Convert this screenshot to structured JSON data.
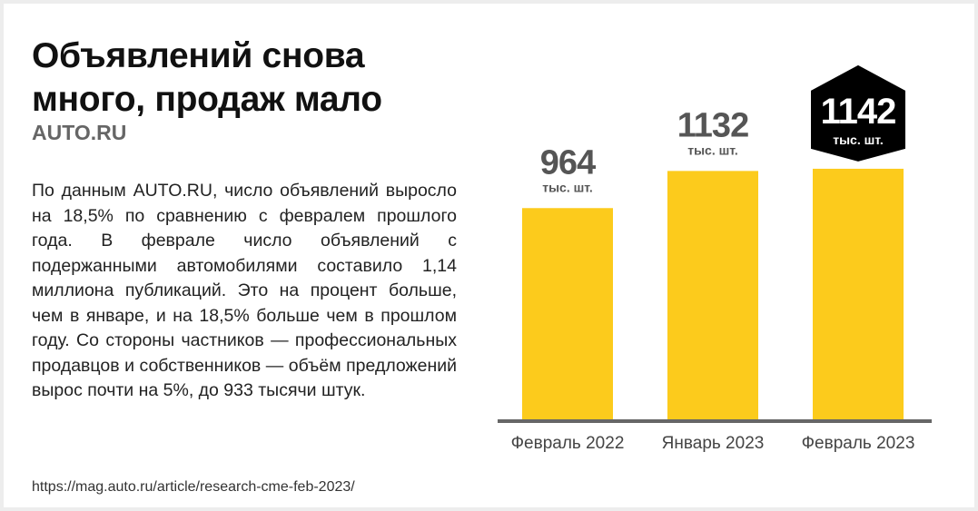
{
  "title_line1": "Объявлений снова",
  "title_line2": "много, продаж мало",
  "subtitle": "AUTO.RU",
  "body": "По данным AUTO.RU, число объявлений выросло на 18,5% по сравнению с февралем прошлого года. В феврале число объявлений с подержанными автомобилями составило 1,14 миллиона публикаций. Это на процент больше, чем в январе, и на 18,5% больше чем в прошлом году. Со стороны частников — профессиональных продавцов и собственников — объём предложений вырос почти на 5%, до 933 тысячи штук.",
  "source": "https://mag.auto.ru/article/research-cme-feb-2023/",
  "colors": {
    "bar": "#fccb1c",
    "axis": "#666666",
    "value_text": "#555555",
    "highlight_bg": "#000000",
    "highlight_text": "#ffffff"
  },
  "chart_data": {
    "type": "bar",
    "categories": [
      "Февраль 2022",
      "Январь 2023",
      "Февраль 2023"
    ],
    "values": [
      964,
      1132,
      1142
    ],
    "value_labels": [
      "964",
      "1132",
      "1142"
    ],
    "unit_label": "тыс. шт.",
    "highlight_index": 2,
    "ylim": [
      0,
      1200
    ],
    "grid": false,
    "legend": "none"
  }
}
